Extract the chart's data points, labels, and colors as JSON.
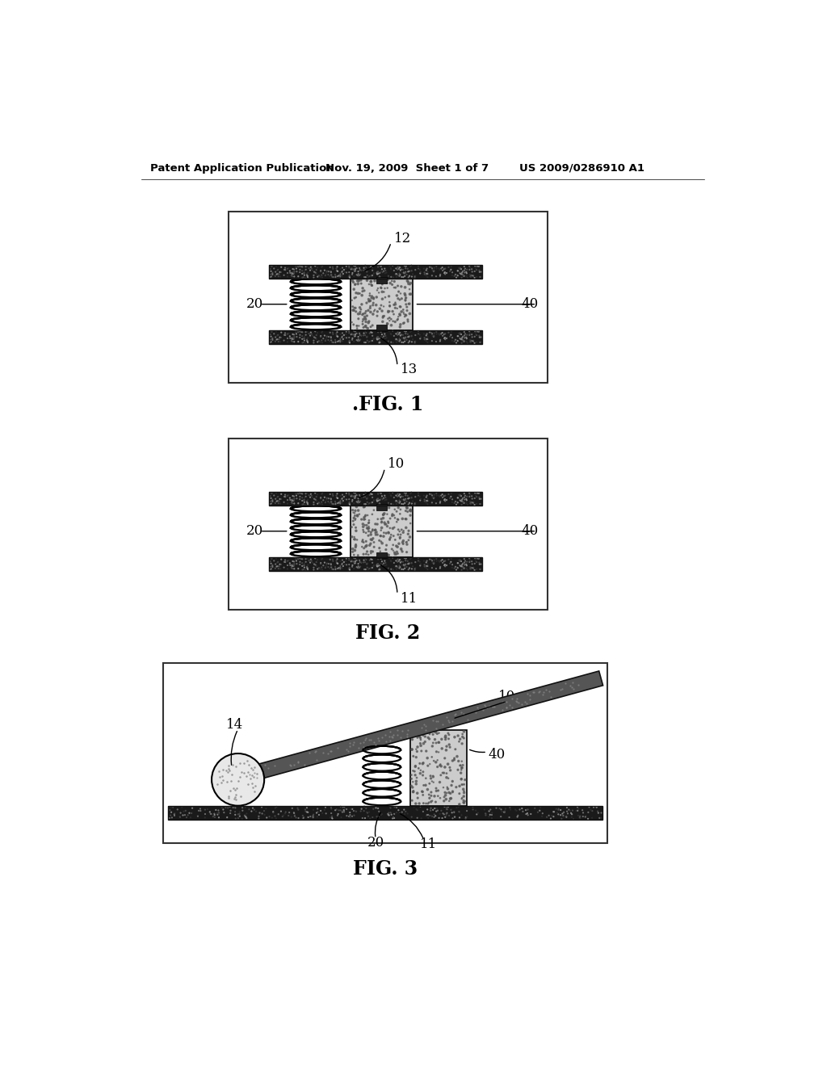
{
  "background_color": "#ffffff",
  "header_text": "Patent Application Publication",
  "header_date": "Nov. 19, 2009  Sheet 1 of 7",
  "header_patent": "US 2009/0286910 A1",
  "fig1_label": ".FIG. 1",
  "fig2_label": "FIG. 2",
  "fig3_label": "FIG. 3",
  "label_12": "12",
  "label_13": "13",
  "label_20_fig1": "20",
  "label_40_fig1": "40",
  "label_10_fig2": "10",
  "label_11_fig2": "11",
  "label_20_fig2": "20",
  "label_40_fig2": "40",
  "label_10_fig3": "10",
  "label_14_fig3": "14",
  "label_20_fig3": "20",
  "label_40_fig3": "40",
  "label_11_fig3": "11"
}
